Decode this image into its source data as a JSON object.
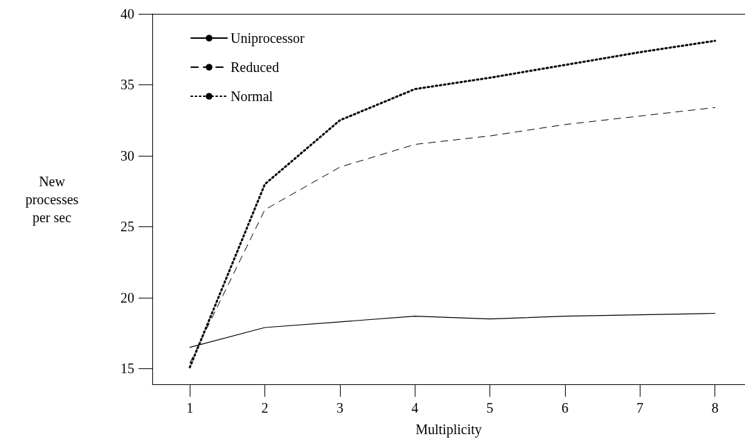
{
  "chart_data": {
    "type": "line",
    "xlabel": "Multiplicity",
    "ylabel": "New\nprocesses\nper sec",
    "x": [
      1,
      2,
      3,
      4,
      5,
      6,
      7,
      8
    ],
    "xlim": [
      0.5,
      8.4
    ],
    "xticks": [
      1,
      2,
      3,
      4,
      5,
      6,
      7,
      8
    ],
    "ylim": [
      13.9,
      40
    ],
    "yticks": [
      15,
      20,
      25,
      30,
      35,
      40
    ],
    "grid": false,
    "legend": "top left",
    "marker": "none",
    "series": [
      {
        "name": "Uniprocessor",
        "color": "#000000",
        "line_style": "solid",
        "values": [
          16.5,
          17.9,
          18.3,
          18.7,
          18.5,
          18.7,
          18.8,
          18.9
        ]
      },
      {
        "name": "Reduced",
        "color": "#000000",
        "line_style": "dashed",
        "values": [
          15.4,
          26.2,
          29.2,
          30.8,
          31.4,
          32.2,
          32.8,
          33.4
        ]
      },
      {
        "name": "Normal",
        "color": "#000000",
        "line_style": "dotted",
        "values": [
          15.1,
          28.0,
          32.5,
          34.7,
          35.5,
          36.4,
          37.3,
          38.1
        ]
      }
    ]
  }
}
